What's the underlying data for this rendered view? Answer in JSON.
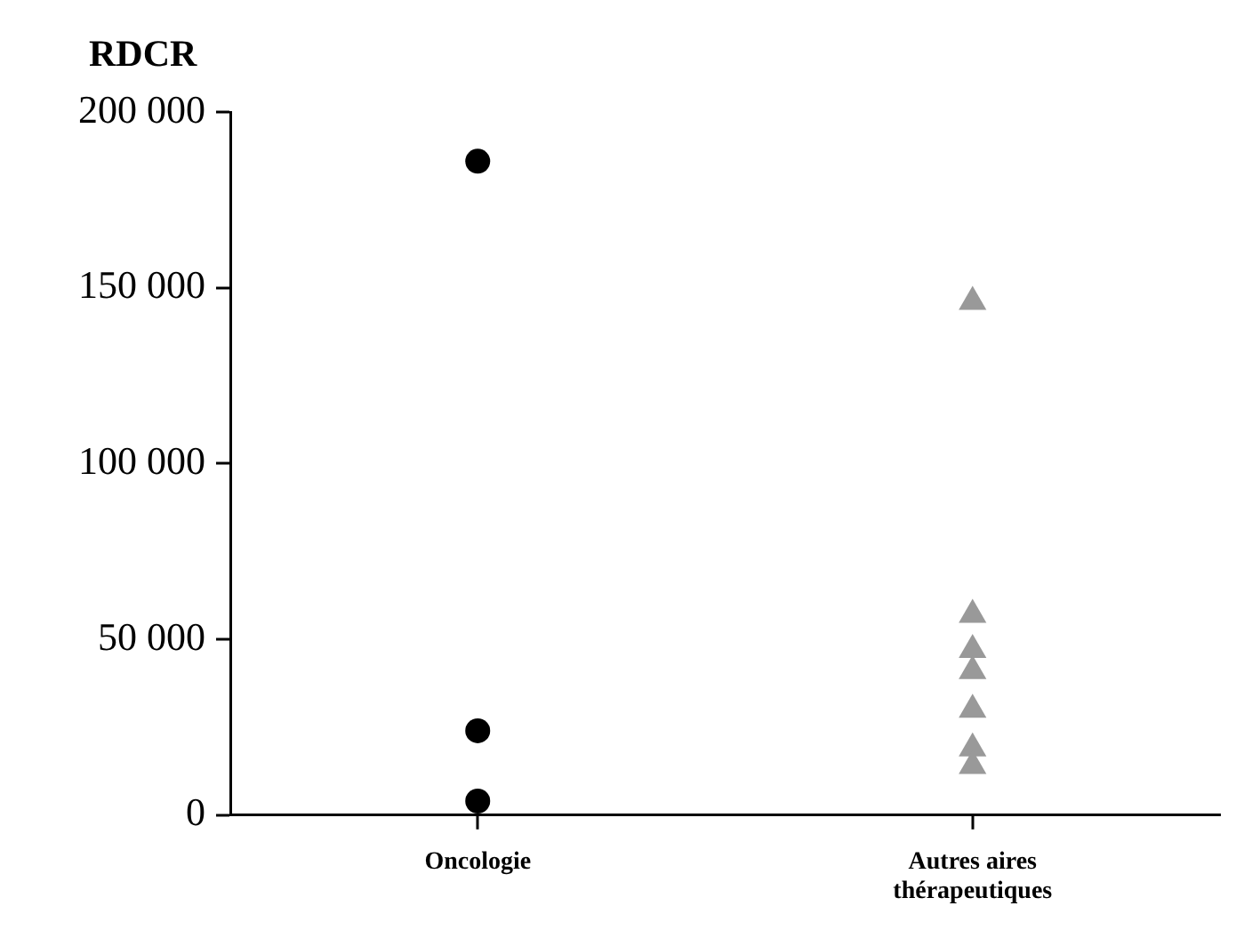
{
  "chart_data": {
    "type": "scatter",
    "ylabel": "RDCR",
    "categories": [
      "Oncologie",
      "Autres aires thérapeutiques"
    ],
    "series": [
      {
        "marker": "circle",
        "color": "#000000",
        "x": [
          "Oncologie",
          "Oncologie",
          "Oncologie"
        ],
        "values": [
          186000,
          24000,
          4000
        ]
      },
      {
        "marker": "triangle",
        "color": "#999999",
        "x": [
          "Autres aires thérapeutiques",
          "Autres aires thérapeutiques",
          "Autres aires thérapeutiques",
          "Autres aires thérapeutiques",
          "Autres aires thérapeutiques",
          "Autres aires thérapeutiques",
          "Autres aires thérapeutiques"
        ],
        "values": [
          146000,
          57000,
          47000,
          41000,
          30000,
          19000,
          14000
        ]
      }
    ],
    "ylim": [
      0,
      200000
    ],
    "yticks": [
      {
        "value": 0,
        "label": "0"
      },
      {
        "value": 50000,
        "label": "50 000"
      },
      {
        "value": 100000,
        "label": "100 000"
      },
      {
        "value": 150000,
        "label": "150 000"
      },
      {
        "value": 200000,
        "label": "200 000"
      }
    ],
    "grid": false,
    "legend": false
  }
}
